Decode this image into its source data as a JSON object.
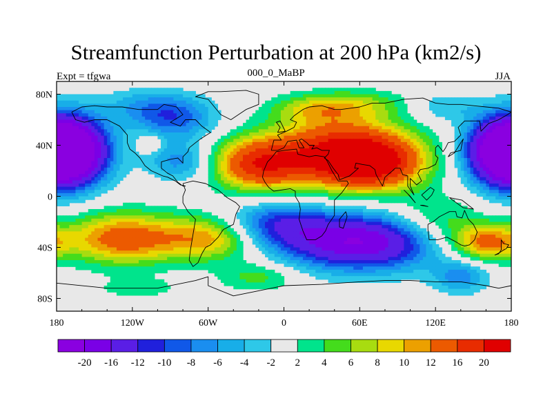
{
  "chart_data": {
    "type": "heatmap",
    "title": "Streamfunction Perturbation at 200 hPa (km2/s)",
    "left_string": "Expt = tfgwa",
    "center_string": "000_0_MaBP",
    "right_string": "JJA",
    "projection": "cylindrical equidistant",
    "xlim": [
      -180,
      180
    ],
    "ylim": [
      -90,
      90
    ],
    "x_ticks": [
      -180,
      -120,
      -60,
      0,
      60,
      120,
      180
    ],
    "x_tick_labels": [
      "180",
      "120W",
      "60W",
      "0",
      "60E",
      "120E",
      "180"
    ],
    "y_ticks": [
      80,
      40,
      0,
      -40,
      -80
    ],
    "y_tick_labels": [
      "80N",
      "40N",
      "0",
      "40S",
      "80S"
    ],
    "contour_levels": [
      -20,
      -16,
      -12,
      -10,
      -8,
      -6,
      -4,
      -2,
      2,
      4,
      6,
      8,
      10,
      12,
      16,
      20
    ],
    "colorbar_labels": [
      "-20",
      "-16",
      "-12",
      "-10",
      "-8",
      "-6",
      "-4",
      "-2",
      "2",
      "4",
      "6",
      "8",
      "10",
      "12",
      "16",
      "20"
    ],
    "colorbar_colors": [
      "#8a00e0",
      "#7a00e6",
      "#5a1ee6",
      "#2020dc",
      "#1058e8",
      "#1a8ef0",
      "#18aee8",
      "#2ec8e8",
      "#e8e8e8",
      "#00e48c",
      "#44dc1c",
      "#a8dc10",
      "#e8d800",
      "#eca000",
      "#ec5a00",
      "#e82c00",
      "#e00000"
    ],
    "anomalies": [
      {
        "lon": -172,
        "lat": 35,
        "amp": -22,
        "sx": 22,
        "sy": 18
      },
      {
        "lon": 178,
        "lat": 35,
        "amp": -22,
        "sx": 22,
        "sy": 18
      },
      {
        "lon": -128,
        "lat": -33,
        "amp": 14,
        "sx": 30,
        "sy": 14
      },
      {
        "lon": -60,
        "lat": -33,
        "amp": 11,
        "sx": 28,
        "sy": 12
      },
      {
        "lon": -20,
        "lat": 25,
        "amp": 17,
        "sx": 25,
        "sy": 14
      },
      {
        "lon": 45,
        "lat": 35,
        "amp": 19,
        "sx": 38,
        "sy": 18
      },
      {
        "lon": 70,
        "lat": 25,
        "amp": 16,
        "sx": 28,
        "sy": 14
      },
      {
        "lon": 60,
        "lat": -36,
        "amp": -20,
        "sx": 42,
        "sy": 15
      },
      {
        "lon": -5,
        "lat": -22,
        "amp": -10,
        "sx": 28,
        "sy": 12
      },
      {
        "lon": -85,
        "lat": 60,
        "amp": -8,
        "sx": 22,
        "sy": 12
      },
      {
        "lon": -110,
        "lat": 70,
        "amp": -5,
        "sx": 25,
        "sy": 10
      },
      {
        "lon": -82,
        "lat": 27,
        "amp": -7,
        "sx": 18,
        "sy": 10
      },
      {
        "lon": 160,
        "lat": -36,
        "amp": 13,
        "sx": 20,
        "sy": 10
      },
      {
        "lon": 120,
        "lat": -20,
        "amp": 6,
        "sx": 25,
        "sy": 14
      },
      {
        "lon": 140,
        "lat": -63,
        "amp": -7,
        "sx": 15,
        "sy": 9
      },
      {
        "lon": 125,
        "lat": 70,
        "amp": -4,
        "sx": 20,
        "sy": 8
      },
      {
        "lon": -20,
        "lat": -63,
        "amp": 5,
        "sx": 22,
        "sy": 8
      },
      {
        "lon": -115,
        "lat": -72,
        "amp": 3,
        "sx": 25,
        "sy": 6
      },
      {
        "lon": -105,
        "lat": 42,
        "amp": 5,
        "sx": 6,
        "sy": 5
      },
      {
        "lon": 25,
        "lat": 68,
        "amp": 6,
        "sx": 25,
        "sy": 8
      },
      {
        "lon": 60,
        "lat": 72,
        "amp": 5,
        "sx": 30,
        "sy": 8
      }
    ],
    "coastlines": [
      [
        [
          -168,
          66
        ],
        [
          -160,
          70
        ],
        [
          -150,
          71
        ],
        [
          -140,
          70
        ],
        [
          -128,
          70
        ],
        [
          -115,
          68
        ],
        [
          -100,
          68
        ],
        [
          -95,
          72
        ],
        [
          -85,
          70
        ],
        [
          -80,
          64
        ],
        [
          -90,
          58
        ],
        [
          -82,
          55
        ],
        [
          -78,
          60
        ],
        [
          -70,
          60
        ],
        [
          -65,
          55
        ],
        [
          -58,
          50
        ],
        [
          -66,
          45
        ],
        [
          -70,
          42
        ],
        [
          -75,
          38
        ],
        [
          -76,
          35
        ],
        [
          -80,
          31
        ],
        [
          -80,
          26
        ],
        [
          -82,
          28
        ],
        [
          -84,
          30
        ],
        [
          -90,
          29
        ],
        [
          -97,
          27
        ],
        [
          -97,
          22
        ],
        [
          -92,
          18
        ],
        [
          -88,
          16
        ],
        [
          -84,
          11
        ],
        [
          -80,
          8
        ],
        [
          -78,
          8
        ],
        [
          -82,
          9
        ],
        [
          -86,
          12
        ],
        [
          -92,
          15
        ],
        [
          -96,
          16
        ],
        [
          -105,
          20
        ],
        [
          -110,
          24
        ],
        [
          -114,
          30
        ],
        [
          -118,
          34
        ],
        [
          -122,
          37
        ],
        [
          -124,
          42
        ],
        [
          -124,
          48
        ],
        [
          -130,
          55
        ],
        [
          -140,
          60
        ],
        [
          -150,
          60
        ],
        [
          -158,
          58
        ],
        [
          -165,
          60
        ],
        [
          -168,
          66
        ]
      ],
      [
        [
          -50,
          82
        ],
        [
          -30,
          83
        ],
        [
          -20,
          80
        ],
        [
          -20,
          72
        ],
        [
          -30,
          68
        ],
        [
          -42,
          60
        ],
        [
          -50,
          64
        ],
        [
          -55,
          70
        ],
        [
          -60,
          76
        ],
        [
          -70,
          78
        ],
        [
          -60,
          82
        ],
        [
          -50,
          82
        ]
      ],
      [
        [
          -80,
          10
        ],
        [
          -72,
          12
        ],
        [
          -62,
          10
        ],
        [
          -52,
          5
        ],
        [
          -45,
          -1
        ],
        [
          -38,
          -5
        ],
        [
          -35,
          -8
        ],
        [
          -38,
          -14
        ],
        [
          -40,
          -22
        ],
        [
          -48,
          -26
        ],
        [
          -52,
          -32
        ],
        [
          -58,
          -38
        ],
        [
          -62,
          -40
        ],
        [
          -65,
          -45
        ],
        [
          -68,
          -52
        ],
        [
          -72,
          -55
        ],
        [
          -75,
          -50
        ],
        [
          -74,
          -42
        ],
        [
          -72,
          -30
        ],
        [
          -70,
          -18
        ],
        [
          -76,
          -12
        ],
        [
          -80,
          -5
        ],
        [
          -80,
          0
        ],
        [
          -78,
          5
        ],
        [
          -80,
          10
        ]
      ],
      [
        [
          -10,
          36
        ],
        [
          -8,
          44
        ],
        [
          -2,
          44
        ],
        [
          -5,
          48
        ],
        [
          2,
          51
        ],
        [
          8,
          54
        ],
        [
          10,
          58
        ],
        [
          5,
          60
        ],
        [
          8,
          63
        ],
        [
          15,
          68
        ],
        [
          20,
          70
        ],
        [
          30,
          71
        ],
        [
          40,
          68
        ],
        [
          45,
          68
        ],
        [
          60,
          70
        ],
        [
          70,
          73
        ],
        [
          80,
          73
        ],
        [
          95,
          76
        ],
        [
          110,
          77
        ],
        [
          120,
          73
        ],
        [
          130,
          72
        ],
        [
          140,
          72
        ],
        [
          150,
          71
        ],
        [
          160,
          70
        ],
        [
          170,
          69
        ],
        [
          180,
          66
        ],
        [
          177,
          64
        ],
        [
          170,
          60
        ],
        [
          162,
          57
        ],
        [
          156,
          51
        ],
        [
          155,
          59
        ],
        [
          143,
          59
        ],
        [
          138,
          54
        ],
        [
          140,
          48
        ],
        [
          135,
          43
        ],
        [
          130,
          42
        ],
        [
          128,
          38
        ],
        [
          126,
          35
        ],
        [
          122,
          40
        ],
        [
          120,
          38
        ],
        [
          120,
          32
        ],
        [
          122,
          30
        ],
        [
          120,
          25
        ],
        [
          114,
          22
        ],
        [
          108,
          21
        ],
        [
          106,
          18
        ],
        [
          109,
          12
        ],
        [
          105,
          9
        ],
        [
          103,
          11
        ],
        [
          100,
          14
        ],
        [
          100,
          8
        ],
        [
          103,
          1
        ],
        [
          98,
          8
        ],
        [
          98,
          16
        ],
        [
          94,
          17
        ],
        [
          92,
          22
        ],
        [
          88,
          22
        ],
        [
          86,
          20
        ],
        [
          80,
          15
        ],
        [
          78,
          8
        ],
        [
          73,
          17
        ],
        [
          72,
          21
        ],
        [
          68,
          24
        ],
        [
          62,
          25
        ],
        [
          57,
          26
        ],
        [
          56,
          22
        ],
        [
          59,
          22
        ],
        [
          52,
          16
        ],
        [
          44,
          13
        ],
        [
          43,
          17
        ],
        [
          39,
          22
        ],
        [
          35,
          28
        ],
        [
          32,
          30
        ],
        [
          35,
          33
        ],
        [
          36,
          36
        ],
        [
          30,
          36
        ],
        [
          26,
          38
        ],
        [
          22,
          37
        ],
        [
          24,
          40
        ],
        [
          20,
          40
        ],
        [
          18,
          42
        ],
        [
          14,
          45
        ],
        [
          12,
          44
        ],
        [
          16,
          38
        ],
        [
          12,
          38
        ],
        [
          10,
          44
        ],
        [
          3,
          43
        ],
        [
          0,
          38
        ],
        [
          -5,
          36
        ],
        [
          -10,
          36
        ]
      ],
      [
        [
          -17,
          15
        ],
        [
          -16,
          20
        ],
        [
          -13,
          27
        ],
        [
          -10,
          30
        ],
        [
          -6,
          35
        ],
        [
          0,
          36
        ],
        [
          10,
          37
        ],
        [
          11,
          33
        ],
        [
          20,
          31
        ],
        [
          25,
          32
        ],
        [
          32,
          31
        ],
        [
          34,
          28
        ],
        [
          38,
          20
        ],
        [
          43,
          12
        ],
        [
          50,
          12
        ],
        [
          51,
          10
        ],
        [
          46,
          3
        ],
        [
          40,
          -3
        ],
        [
          40,
          -10
        ],
        [
          40,
          -15
        ],
        [
          35,
          -22
        ],
        [
          33,
          -27
        ],
        [
          30,
          -31
        ],
        [
          25,
          -34
        ],
        [
          18,
          -34
        ],
        [
          15,
          -27
        ],
        [
          12,
          -18
        ],
        [
          13,
          -10
        ],
        [
          12,
          -5
        ],
        [
          9,
          0
        ],
        [
          9,
          4
        ],
        [
          5,
          6
        ],
        [
          -2,
          5
        ],
        [
          -8,
          4
        ],
        [
          -12,
          7
        ],
        [
          -15,
          11
        ],
        [
          -17,
          15
        ]
      ],
      [
        [
          114,
          -22
        ],
        [
          118,
          -20
        ],
        [
          123,
          -16
        ],
        [
          127,
          -14
        ],
        [
          131,
          -12
        ],
        [
          136,
          -12
        ],
        [
          137,
          -16
        ],
        [
          141,
          -17
        ],
        [
          143,
          -11
        ],
        [
          146,
          -18
        ],
        [
          150,
          -22
        ],
        [
          153,
          -28
        ],
        [
          151,
          -34
        ],
        [
          147,
          -38
        ],
        [
          143,
          -39
        ],
        [
          140,
          -38
        ],
        [
          135,
          -35
        ],
        [
          129,
          -32
        ],
        [
          122,
          -34
        ],
        [
          115,
          -34
        ],
        [
          114,
          -26
        ],
        [
          114,
          -22
        ]
      ],
      [
        [
          172,
          -34
        ],
        [
          174,
          -37
        ],
        [
          178,
          -38
        ],
        [
          176,
          -41
        ],
        [
          174,
          -42
        ],
        [
          171,
          -44
        ],
        [
          167,
          -46
        ],
        [
          170,
          -45
        ],
        [
          172,
          -42
        ],
        [
          172,
          -34
        ]
      ],
      [
        [
          49,
          -12
        ],
        [
          50,
          -16
        ],
        [
          47,
          -25
        ],
        [
          44,
          -24
        ],
        [
          44,
          -18
        ],
        [
          49,
          -12
        ]
      ],
      [
        [
          130,
          31
        ],
        [
          132,
          34
        ],
        [
          136,
          35
        ],
        [
          140,
          36
        ],
        [
          141,
          41
        ],
        [
          142,
          45
        ],
        [
          140,
          42
        ],
        [
          135,
          34
        ],
        [
          130,
          31
        ]
      ],
      [
        [
          -5,
          50
        ],
        [
          -3,
          54
        ],
        [
          -6,
          58
        ],
        [
          -3,
          59
        ],
        [
          0,
          53
        ],
        [
          1,
          51
        ],
        [
          -5,
          50
        ]
      ],
      [
        [
          95,
          5
        ],
        [
          98,
          2
        ],
        [
          104,
          -5
        ],
        [
          100,
          0
        ],
        [
          95,
          5
        ]
      ],
      [
        [
          108,
          -7
        ],
        [
          114,
          -8
        ],
        [
          110,
          -7
        ],
        [
          108,
          -7
        ]
      ],
      [
        [
          109,
          1
        ],
        [
          113,
          -3
        ],
        [
          117,
          1
        ],
        [
          119,
          5
        ],
        [
          116,
          7
        ],
        [
          109,
          1
        ]
      ],
      [
        [
          131,
          -1
        ],
        [
          141,
          -3
        ],
        [
          150,
          -10
        ],
        [
          142,
          -9
        ],
        [
          135,
          -4
        ],
        [
          131,
          -1
        ]
      ],
      [
        [
          -180,
          -68
        ],
        [
          -140,
          -72
        ],
        [
          -100,
          -72
        ],
        [
          -70,
          -66
        ],
        [
          -60,
          -63
        ],
        [
          -60,
          -70
        ],
        [
          -40,
          -78
        ],
        [
          -20,
          -74
        ],
        [
          0,
          -70
        ],
        [
          30,
          -69
        ],
        [
          60,
          -67
        ],
        [
          80,
          -66
        ],
        [
          100,
          -66
        ],
        [
          120,
          -67
        ],
        [
          140,
          -67
        ],
        [
          160,
          -70
        ],
        [
          170,
          -72
        ],
        [
          180,
          -70
        ]
      ]
    ]
  }
}
